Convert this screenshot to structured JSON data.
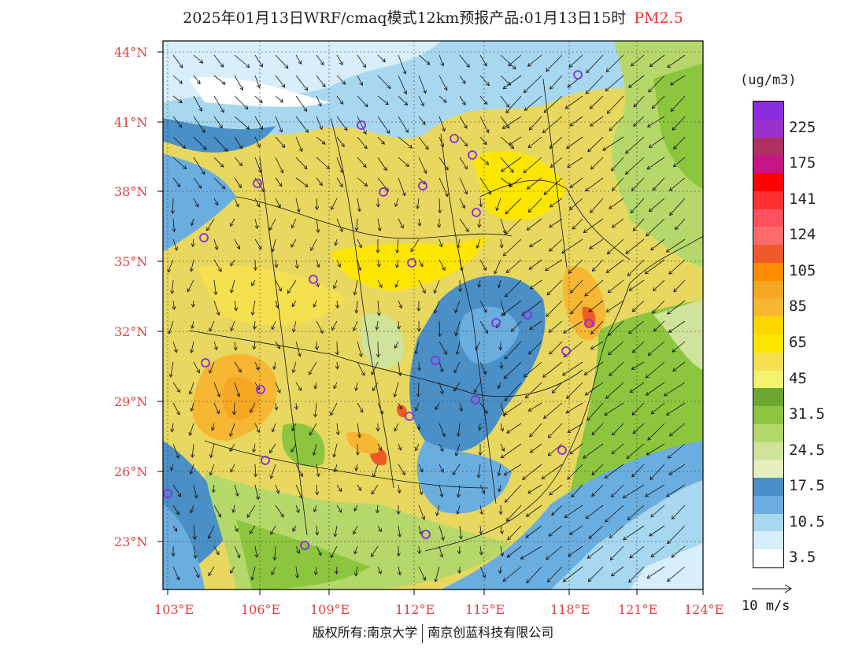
{
  "header": {
    "title": "2025年01月13日WRF/cmaq模式12km预报产品:01月13日15时",
    "pollutant": "PM2.5"
  },
  "map": {
    "lon_labels": [
      "103°E",
      "106°E",
      "109°E",
      "112°E",
      "115°E",
      "118°E",
      "121°E",
      "124°E"
    ],
    "lat_labels": [
      "44°N",
      "41°N",
      "38°N",
      "35°N",
      "32°N",
      "29°N",
      "26°N",
      "23°N"
    ],
    "axis_label_color": "#e04040"
  },
  "legend": {
    "unit": "(ug/m3)",
    "bins": [
      {
        "label": "",
        "color": "#8a2be2"
      },
      {
        "label": "225",
        "color": "#9932cc"
      },
      {
        "label": "",
        "color": "#b03060"
      },
      {
        "label": "175",
        "color": "#c71585"
      },
      {
        "label": "",
        "color": "#ff0000"
      },
      {
        "label": "141",
        "color": "#ff3030"
      },
      {
        "label": "",
        "color": "#ff5060"
      },
      {
        "label": "124",
        "color": "#ff6a6a"
      },
      {
        "label": "",
        "color": "#f05a28"
      },
      {
        "label": "105",
        "color": "#ff8c00"
      },
      {
        "label": "",
        "color": "#f5a623"
      },
      {
        "label": "85",
        "color": "#f7b733"
      },
      {
        "label": "",
        "color": "#ffd700"
      },
      {
        "label": "65",
        "color": "#ffe600"
      },
      {
        "label": "",
        "color": "#f5e050"
      },
      {
        "label": "45",
        "color": "#f2f26e"
      },
      {
        "label": "",
        "color": "#6aa832"
      },
      {
        "label": "31.5",
        "color": "#8cc63f"
      },
      {
        "label": "",
        "color": "#b5d86b"
      },
      {
        "label": "24.5",
        "color": "#cfe39a"
      },
      {
        "label": "",
        "color": "#e5efc0"
      },
      {
        "label": "17.5",
        "color": "#4a8fc6"
      },
      {
        "label": "",
        "color": "#6aaee0"
      },
      {
        "label": "10.5",
        "color": "#a8d8f0"
      },
      {
        "label": "",
        "color": "#d8eefa"
      },
      {
        "label": "3.5",
        "color": "#ffffff"
      }
    ]
  },
  "wind_reference": "10 m/s",
  "footer": {
    "left": "版权所有:南京大学",
    "right": "南京创蓝科技有限公司"
  }
}
